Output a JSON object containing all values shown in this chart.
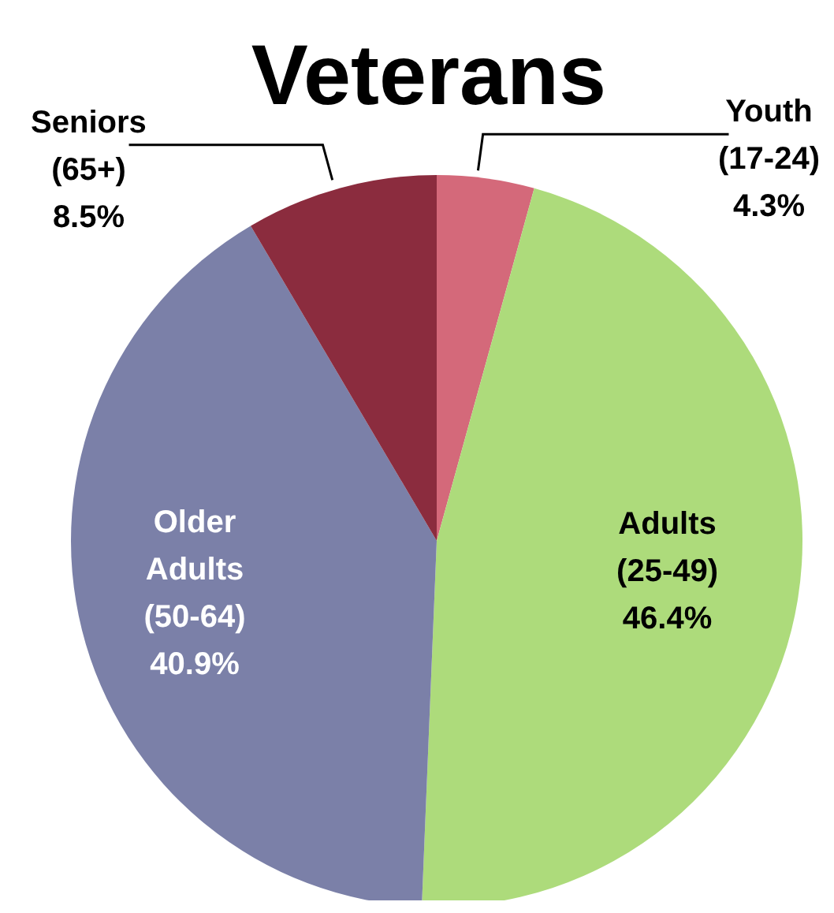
{
  "chart_data": {
    "type": "pie",
    "title": "Veterans",
    "categories": [
      "Youth (17-24)",
      "Adults (25-49)",
      "Older Adults (50-64)",
      "Seniors (65+)"
    ],
    "values": [
      4.3,
      46.4,
      40.9,
      8.5
    ],
    "colors": [
      "#d4697a",
      "#addb7b",
      "#7b80a8",
      "#8b2c3e"
    ],
    "value_labels": [
      "4.3%",
      "46.4%",
      "40.9%",
      "8.5%"
    ],
    "legend": false
  }
}
